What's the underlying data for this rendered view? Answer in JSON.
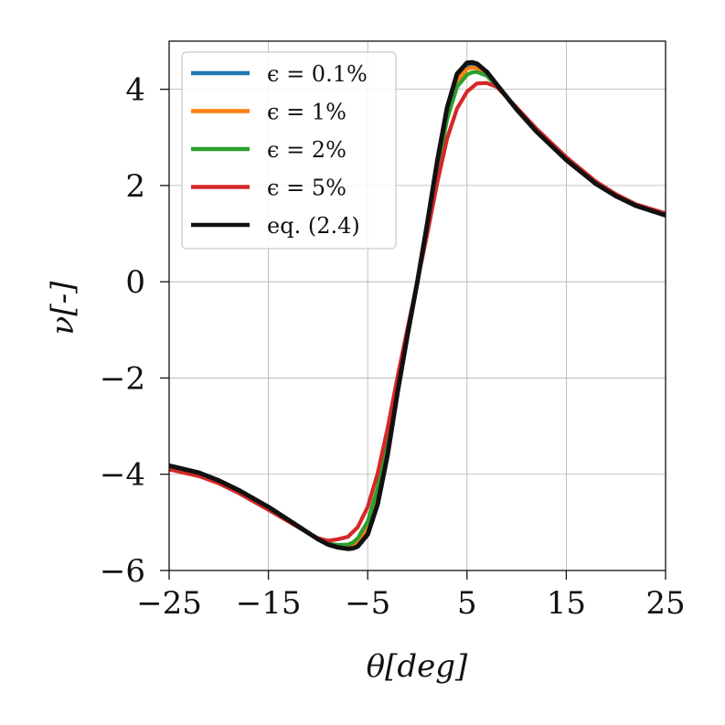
{
  "chart_data": {
    "type": "line",
    "title": "",
    "xlabel": "θ[deg]",
    "ylabel": "ν[-]",
    "xlim": [
      -25,
      25
    ],
    "ylim": [
      -6,
      5
    ],
    "xticks": [
      -25,
      -15,
      -5,
      5,
      15,
      25
    ],
    "yticks": [
      -6,
      -4,
      -2,
      0,
      2,
      4
    ],
    "xtick_labels": [
      "−25",
      "−15",
      "−5",
      "5",
      "15",
      "25"
    ],
    "ytick_labels": [
      "−6",
      "−4",
      "−2",
      "0",
      "2",
      "4"
    ],
    "grid": true,
    "legend_position": "top-left",
    "series": [
      {
        "name": "ϵ = 0.1%",
        "color": "#1f77b4",
        "x": [
          -25,
          -22,
          -20,
          -18,
          -15,
          -12,
          -10,
          -9,
          -8,
          -7,
          -6.5,
          -6,
          -5,
          -4,
          -3,
          -2,
          -1,
          0,
          1,
          2,
          3,
          4,
          5,
          5.5,
          6,
          7,
          8,
          10,
          12,
          15,
          18,
          20,
          22,
          25
        ],
        "y": [
          -3.85,
          -4.0,
          -4.15,
          -4.35,
          -4.7,
          -5.1,
          -5.35,
          -5.45,
          -5.5,
          -5.52,
          -5.5,
          -5.45,
          -5.15,
          -4.5,
          -3.5,
          -2.25,
          -1.1,
          0.0,
          1.2,
          2.45,
          3.55,
          4.25,
          4.5,
          4.52,
          4.5,
          4.35,
          4.1,
          3.6,
          3.15,
          2.55,
          2.05,
          1.8,
          1.6,
          1.4
        ]
      },
      {
        "name": "ϵ = 1%",
        "color": "#ff7f0e",
        "x": [
          -25,
          -22,
          -20,
          -18,
          -15,
          -12,
          -10,
          -9,
          -8,
          -7,
          -6.5,
          -6,
          -5,
          -4,
          -3,
          -2,
          -1,
          0,
          1,
          2,
          3,
          4,
          5,
          5.5,
          6,
          7,
          8,
          10,
          12,
          15,
          18,
          20,
          22,
          25
        ],
        "y": [
          -3.86,
          -4.01,
          -4.16,
          -4.36,
          -4.71,
          -5.1,
          -5.35,
          -5.45,
          -5.49,
          -5.5,
          -5.48,
          -5.42,
          -5.1,
          -4.42,
          -3.42,
          -2.2,
          -1.08,
          0.0,
          1.18,
          2.4,
          3.5,
          4.18,
          4.42,
          4.45,
          4.44,
          4.32,
          4.09,
          3.6,
          3.15,
          2.56,
          2.06,
          1.8,
          1.6,
          1.4
        ]
      },
      {
        "name": "ϵ = 2%",
        "color": "#2ca02c",
        "x": [
          -25,
          -22,
          -20,
          -18,
          -15,
          -12,
          -10,
          -9,
          -8,
          -7,
          -6.5,
          -6,
          -5,
          -4,
          -3,
          -2,
          -1,
          0,
          1,
          2,
          3,
          4,
          5,
          5.5,
          6,
          7,
          8,
          10,
          12,
          15,
          18,
          20,
          22,
          25
        ],
        "y": [
          -3.87,
          -4.02,
          -4.17,
          -4.37,
          -4.72,
          -5.1,
          -5.35,
          -5.44,
          -5.47,
          -5.46,
          -5.42,
          -5.33,
          -4.98,
          -4.28,
          -3.3,
          -2.12,
          -1.04,
          0.0,
          1.12,
          2.3,
          3.38,
          4.05,
          4.3,
          4.35,
          4.36,
          4.28,
          4.07,
          3.6,
          3.16,
          2.57,
          2.07,
          1.81,
          1.6,
          1.41
        ]
      },
      {
        "name": "ϵ = 5%",
        "color": "#d62728",
        "x": [
          -25,
          -22,
          -20,
          -18,
          -15,
          -12,
          -10,
          -9,
          -8,
          -7,
          -6,
          -5,
          -4,
          -3,
          -2,
          -1,
          0,
          1,
          2,
          3,
          4,
          5,
          6,
          7,
          8,
          10,
          12,
          15,
          18,
          20,
          22,
          25
        ],
        "y": [
          -3.9,
          -4.04,
          -4.19,
          -4.39,
          -4.74,
          -5.1,
          -5.33,
          -5.38,
          -5.35,
          -5.3,
          -5.1,
          -4.68,
          -3.98,
          -3.05,
          -1.98,
          -0.98,
          0.0,
          1.0,
          2.05,
          2.98,
          3.6,
          3.95,
          4.12,
          4.13,
          4.05,
          3.62,
          3.18,
          2.59,
          2.08,
          1.82,
          1.61,
          1.42
        ]
      },
      {
        "name": "eq. (2.4)",
        "color": "#111111",
        "x": [
          -25,
          -22,
          -20,
          -18,
          -15,
          -12,
          -10,
          -9,
          -8,
          -7,
          -6.5,
          -6,
          -5,
          -4,
          -3,
          -2,
          -1,
          0,
          1,
          2,
          3,
          4,
          5,
          5.5,
          6,
          7,
          8,
          10,
          12,
          15,
          18,
          20,
          22,
          25
        ],
        "y": [
          -3.82,
          -3.97,
          -4.13,
          -4.33,
          -4.68,
          -5.08,
          -5.35,
          -5.46,
          -5.52,
          -5.55,
          -5.54,
          -5.5,
          -5.25,
          -4.62,
          -3.6,
          -2.3,
          -1.12,
          0.0,
          1.22,
          2.5,
          3.62,
          4.32,
          4.55,
          4.56,
          4.53,
          4.36,
          4.1,
          3.58,
          3.12,
          2.53,
          2.03,
          1.78,
          1.58,
          1.38
        ]
      }
    ]
  }
}
